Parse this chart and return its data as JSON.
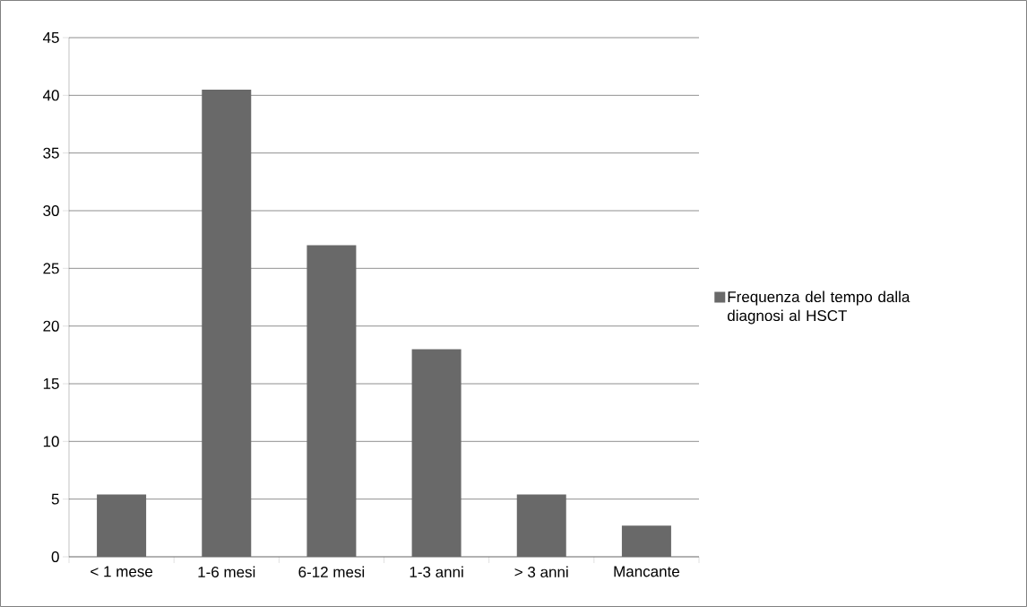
{
  "chart_data": {
    "type": "bar",
    "categories": [
      "< 1 mese",
      "1-6 mesi",
      "6-12 mesi",
      "1-3 anni",
      "> 3 anni",
      "Mancante"
    ],
    "series": [
      {
        "name": "Frequenza del tempo dalla diagnosi al HSCT",
        "color": "#696969",
        "values": [
          5.4,
          40.5,
          27.0,
          18.0,
          5.4,
          2.7
        ]
      }
    ],
    "ylim": [
      0,
      45
    ],
    "yticks": [
      0,
      5,
      10,
      15,
      20,
      25,
      30,
      35,
      40,
      45
    ],
    "grid": "y",
    "legend": "right"
  }
}
